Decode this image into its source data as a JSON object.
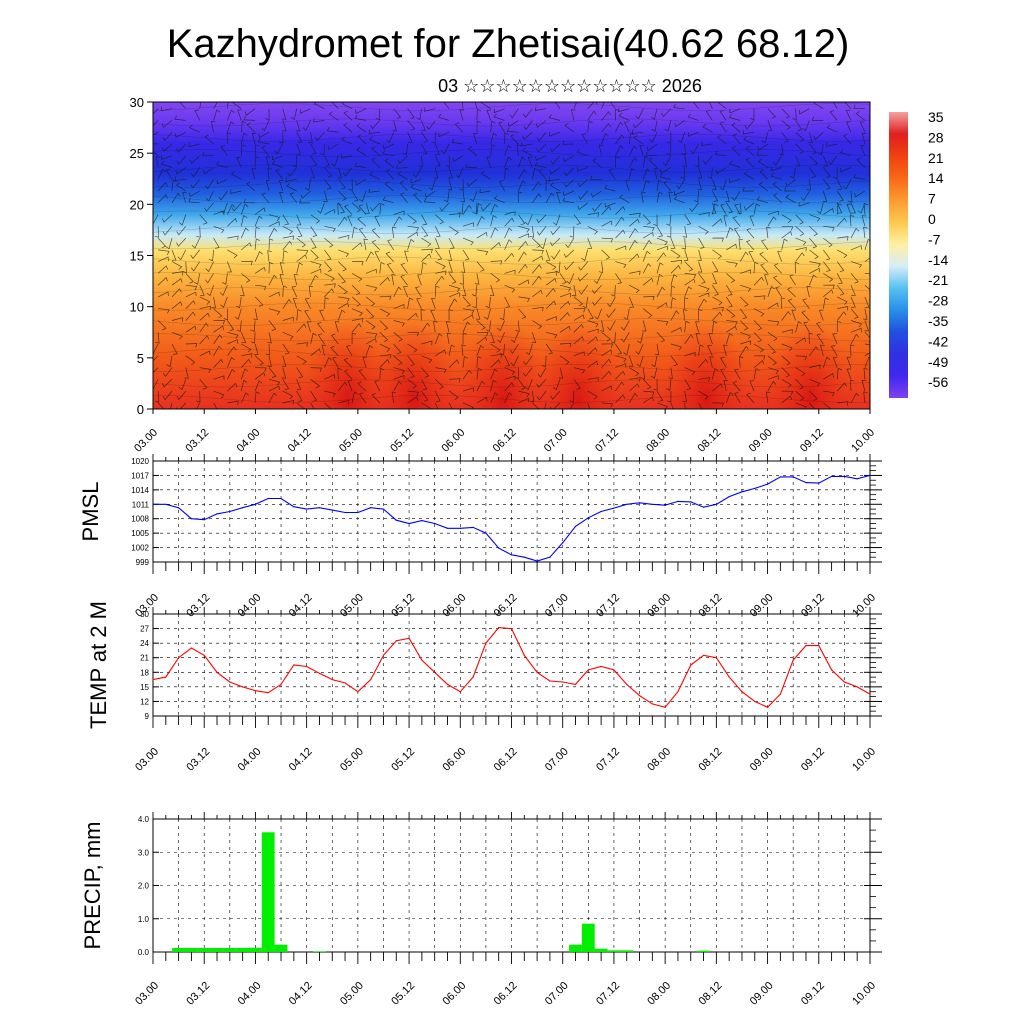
{
  "title": "Kazhydromet for Zhetisai(40.62 68.12)",
  "subtitle": "03 ☆☆☆☆☆☆☆☆☆☆☆☆ 2026",
  "x_ticks": [
    "03.00",
    "03.12",
    "04.00",
    "04.12",
    "05.00",
    "05.12",
    "06.00",
    "06.12",
    "07.00",
    "07.12",
    "08.00",
    "08.12",
    "09.00",
    "09.12",
    "10.00"
  ],
  "chart_data": [
    {
      "id": "temperature-cross-section",
      "type": "heatmap",
      "title": "",
      "xlabel": "",
      "ylabel": "",
      "ylim": [
        0,
        30
      ],
      "y_ticks": [
        0,
        5,
        10,
        15,
        20,
        25,
        30
      ],
      "colorbar_labels": [
        "35",
        "28",
        "21",
        "14",
        "7",
        "0",
        "-7",
        "-14",
        "-21",
        "-28",
        "-35",
        "-42",
        "-49",
        "-56"
      ],
      "colorbar_colors": [
        "#f4a0a0",
        "#e02020",
        "#f04010",
        "#f86818",
        "#fc9a30",
        "#fdc850",
        "#fef0a0",
        "#d8eef8",
        "#58c0f0",
        "#2890e8",
        "#2050e0",
        "#3030e0",
        "#4028f0",
        "#8040f0"
      ],
      "layer_profile": [
        {
          "height": 0,
          "color": "#e83020"
        },
        {
          "height": 5,
          "color": "#f25a18"
        },
        {
          "height": 10,
          "color": "#f98a28"
        },
        {
          "height": 13,
          "color": "#fcb640"
        },
        {
          "height": 15.5,
          "color": "#fde070"
        },
        {
          "height": 17,
          "color": "#c8eaf8"
        },
        {
          "height": 19,
          "color": "#40a8ec"
        },
        {
          "height": 21,
          "color": "#2060e0"
        },
        {
          "height": 23,
          "color": "#2030d8"
        },
        {
          "height": 26,
          "color": "#3828e8"
        },
        {
          "height": 28,
          "color": "#6a38f0"
        },
        {
          "height": 30,
          "color": "#8048f0"
        }
      ],
      "warm_cores_x": [
        4.9,
        5.55,
        6.42,
        7.15,
        8.4,
        9.42
      ]
    },
    {
      "id": "pmsl",
      "type": "line",
      "ylabel": "PMSL",
      "ylim": [
        999,
        1020
      ],
      "y_ticks": [
        999,
        1002,
        1005,
        1008,
        1011,
        1014,
        1017,
        1020
      ],
      "color": "#0000ff",
      "x": [
        3.0,
        3.125,
        3.25,
        3.375,
        3.5,
        3.625,
        3.75,
        3.875,
        4.0,
        4.125,
        4.25,
        4.375,
        4.5,
        4.625,
        4.75,
        4.875,
        5.0,
        5.125,
        5.25,
        5.375,
        5.5,
        5.625,
        5.75,
        5.875,
        6.0,
        6.125,
        6.25,
        6.375,
        6.5,
        6.625,
        6.75,
        6.875,
        7.0,
        7.125,
        7.25,
        7.375,
        7.5,
        7.625,
        7.75,
        7.875,
        8.0,
        8.125,
        8.25,
        8.375,
        8.5,
        8.625,
        8.75,
        8.875,
        9.0,
        9.125,
        9.25,
        9.375,
        9.5,
        9.625,
        9.75,
        9.875,
        10.0
      ],
      "values": [
        1011,
        1011,
        1010.3,
        1008,
        1007.8,
        1009,
        1009.5,
        1010.3,
        1011,
        1012.2,
        1012.2,
        1010.5,
        1010,
        1010.3,
        1009.8,
        1009.3,
        1009.3,
        1010.3,
        1010,
        1007.7,
        1007,
        1007.6,
        1007,
        1006,
        1006,
        1006.2,
        1005,
        1001.9,
        1000.5,
        1000,
        999.2,
        1000,
        1003,
        1006.4,
        1008.2,
        1009.5,
        1010.2,
        1011,
        1011.3,
        1011,
        1010.8,
        1011.6,
        1011.5,
        1010.4,
        1011,
        1012.6,
        1013.6,
        1014.3,
        1015.2,
        1016.7,
        1016.7,
        1015.5,
        1015.4,
        1016.8,
        1016.8,
        1016.3,
        1017
      ]
    },
    {
      "id": "temp-2m",
      "type": "line",
      "ylabel": "TEMP at 2 M",
      "ylim": [
        9,
        30
      ],
      "y_ticks": [
        9,
        12,
        15,
        18,
        21,
        24,
        27,
        30
      ],
      "color": "#ff0000",
      "x": [
        3.0,
        3.125,
        3.25,
        3.375,
        3.5,
        3.625,
        3.75,
        3.875,
        4.0,
        4.125,
        4.25,
        4.375,
        4.5,
        4.625,
        4.75,
        4.875,
        5.0,
        5.125,
        5.25,
        5.375,
        5.5,
        5.625,
        5.75,
        5.875,
        6.0,
        6.125,
        6.25,
        6.375,
        6.5,
        6.625,
        6.75,
        6.875,
        7.0,
        7.125,
        7.25,
        7.375,
        7.5,
        7.625,
        7.75,
        7.875,
        8.0,
        8.125,
        8.25,
        8.375,
        8.5,
        8.625,
        8.75,
        8.875,
        9.0,
        9.125,
        9.25,
        9.375,
        9.5,
        9.625,
        9.75,
        9.875,
        10.0
      ],
      "values": [
        16.5,
        17,
        21,
        23,
        21.5,
        18,
        16,
        15,
        14.2,
        13.8,
        15.5,
        19.5,
        19.2,
        17.8,
        16.5,
        15.8,
        14,
        16.5,
        21.5,
        24.5,
        25,
        20.5,
        18,
        15.5,
        14,
        17,
        24,
        27.2,
        27,
        21.5,
        18,
        16.2,
        16,
        15.5,
        18.5,
        19.2,
        18.5,
        15.5,
        13.2,
        11.5,
        10.8,
        14,
        19.5,
        21.5,
        21,
        17,
        14,
        12,
        10.8,
        13.5,
        20.5,
        23.5,
        23.5,
        18.5,
        16,
        15,
        13.5
      ]
    },
    {
      "id": "precip",
      "type": "bar",
      "ylabel": "PRECIP, mm",
      "ylim": [
        0,
        4.0
      ],
      "y_ticks": [
        0,
        1.0,
        2.0,
        3.0,
        4.0
      ],
      "y_tick_labels": [
        "0.0",
        "1.0",
        "2.0",
        "3.0",
        "4.0"
      ],
      "color": "#00ee00",
      "x": [
        3.25,
        3.375,
        3.5,
        3.625,
        3.75,
        3.875,
        4.0,
        4.125,
        4.25,
        4.375,
        4.5,
        4.625,
        6.25,
        6.375,
        6.5,
        6.625,
        6.75,
        6.875,
        7.0,
        7.125,
        7.25,
        7.375,
        7.5,
        7.625,
        7.75,
        7.875,
        8.0,
        8.125,
        8.25,
        8.375
      ],
      "values": [
        0.12,
        0.12,
        0.12,
        0.12,
        0.12,
        0.12,
        0.13,
        3.6,
        0.22,
        0,
        0,
        0.02,
        0,
        0,
        0,
        0,
        0,
        0,
        0,
        0.22,
        0.85,
        0.1,
        0.05,
        0.05,
        0,
        0,
        0,
        0,
        0,
        0.04
      ]
    }
  ]
}
